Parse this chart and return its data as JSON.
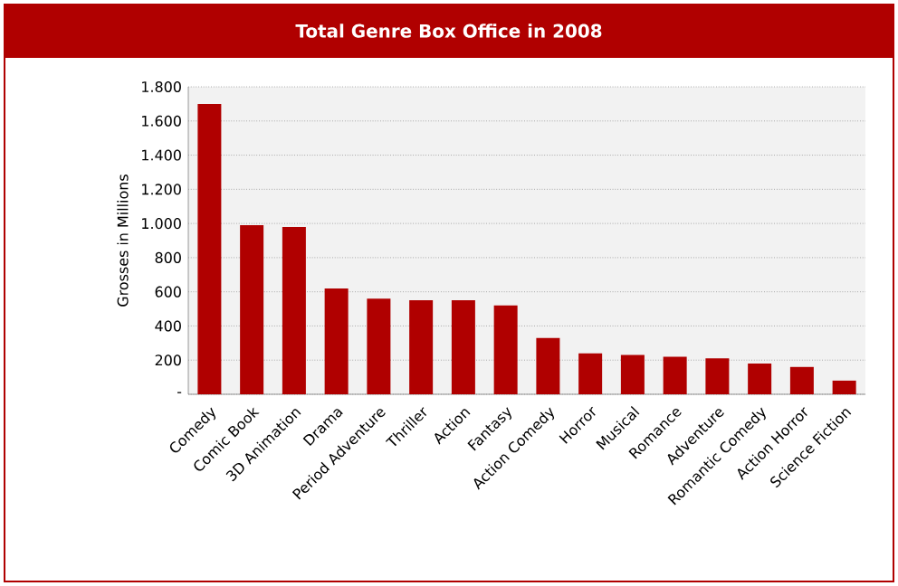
{
  "chart_data": {
    "type": "bar",
    "title": "Total Genre Box Office in 2008",
    "ylabel": "Grosses in Millions",
    "categories": [
      "Comedy",
      "Comic Book",
      "3D Animation",
      "Drama",
      "Period Adventure",
      "Thriller",
      "Action",
      "Fantasy",
      "Action Comedy",
      "Horror",
      "Musical",
      "Romance",
      "Adventure",
      "Romantic Comedy",
      "Action Horror",
      "Science Fiction"
    ],
    "values": [
      1700,
      990,
      980,
      620,
      560,
      550,
      550,
      520,
      330,
      240,
      230,
      220,
      210,
      180,
      160,
      80
    ],
    "color": "#b00000",
    "ylim": [
      0,
      1800
    ],
    "yticks": [
      {
        "value": 0,
        "label": "-"
      },
      {
        "value": 200,
        "label": "200"
      },
      {
        "value": 400,
        "label": "400"
      },
      {
        "value": 600,
        "label": "600"
      },
      {
        "value": 800,
        "label": "800"
      },
      {
        "value": 1000,
        "label": "1.000"
      },
      {
        "value": 1200,
        "label": "1.200"
      },
      {
        "value": 1400,
        "label": "1.400"
      },
      {
        "value": 1600,
        "label": "1.600"
      },
      {
        "value": 1800,
        "label": "1.800"
      }
    ],
    "grid": "y"
  }
}
